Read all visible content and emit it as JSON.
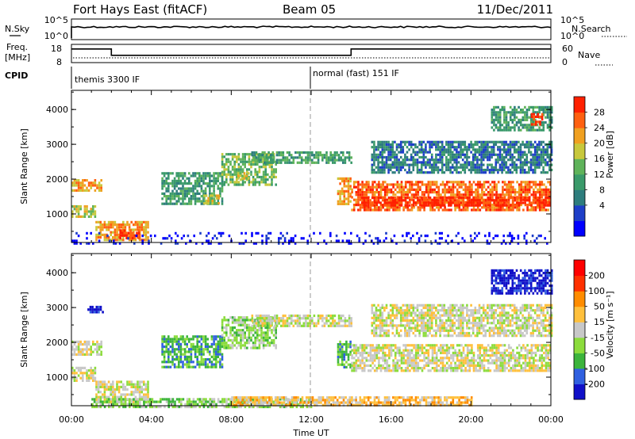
{
  "header": {
    "station": "Fort Hays East (fitACF)",
    "beam": "Beam 05",
    "date": "11/Dec/2011"
  },
  "top_panels": {
    "nsky_label": "N.Sky",
    "nsearch_label": "N.Search",
    "counts_ticks": [
      "10^5",
      "10^0"
    ],
    "freq_label_line1": "Freq.",
    "freq_label_line2": "[MHz]",
    "freq_ticks": [
      "18",
      "8"
    ],
    "nave_label": "Nave",
    "nave_ticks": [
      "60",
      "0"
    ],
    "cpid_label": "CPID",
    "cpid_segments": [
      {
        "label": "themis 3300 IF",
        "start_hour": 0,
        "end_hour": 12
      },
      {
        "label": "normal (fast) 151 IF",
        "start_hour": 12,
        "end_hour": 24
      }
    ],
    "freq_series": [
      {
        "hour": 0,
        "value": 15.5
      },
      {
        "hour": 2,
        "value": 15.5
      },
      {
        "hour": 2,
        "value": 12
      },
      {
        "hour": 14,
        "value": 12
      },
      {
        "hour": 14,
        "value": 15.5
      },
      {
        "hour": 24,
        "value": 15.5
      }
    ]
  },
  "chart_data": [
    {
      "type": "heatmap",
      "parameter": "Power",
      "ylabel": "Slant Range [km]",
      "ylim": [
        180,
        4550
      ],
      "yticks": [
        "1000",
        "2000",
        "3000",
        "4000"
      ],
      "xlim": [
        0,
        24
      ],
      "colorbar": {
        "label": "Power [dB]",
        "ticks": [
          "28",
          "24",
          "20",
          "16",
          "12",
          "8",
          "4"
        ],
        "colors": [
          "#0000ff",
          "#1e3fc8",
          "#2e7d7d",
          "#3a9a6a",
          "#5fb35a",
          "#c8c83c",
          "#f0a020",
          "#ff6010",
          "#ff2000"
        ]
      },
      "bands": [
        {
          "from": 0.0,
          "to": 1.5,
          "y0": 1650,
          "y1": 2000,
          "v": 6
        },
        {
          "from": 0.0,
          "to": 1.2,
          "y0": 900,
          "y1": 1250,
          "v": 5
        },
        {
          "from": 1.2,
          "to": 3.8,
          "y0": 250,
          "y1": 800,
          "v": 6
        },
        {
          "from": 2.4,
          "to": 3.4,
          "y0": 330,
          "y1": 560,
          "v": 8
        },
        {
          "from": 4.5,
          "to": 7.5,
          "y0": 1300,
          "y1": 2200,
          "v": 3
        },
        {
          "from": 6.6,
          "to": 7.4,
          "y0": 1320,
          "y1": 1560,
          "v": 5
        },
        {
          "from": 7.5,
          "to": 10.2,
          "y0": 1850,
          "y1": 2750,
          "v": 4
        },
        {
          "from": 8.3,
          "to": 8.9,
          "y0": 2000,
          "y1": 2200,
          "v": 5
        },
        {
          "from": 9.0,
          "to": 11.9,
          "y0": 2450,
          "y1": 2800,
          "v": 3
        },
        {
          "from": 12.0,
          "to": 14.0,
          "y0": 2450,
          "y1": 2800,
          "v": 3
        },
        {
          "from": 13.3,
          "to": 14.0,
          "y0": 1250,
          "y1": 2050,
          "v": 6
        },
        {
          "from": 14.0,
          "to": 24.0,
          "y0": 1100,
          "y1": 1950,
          "v": 7
        },
        {
          "from": 14.5,
          "to": 24.0,
          "y0": 1250,
          "y1": 1500,
          "v": 8
        },
        {
          "from": 15.0,
          "to": 24.0,
          "y0": 2200,
          "y1": 3100,
          "v": 2
        },
        {
          "from": 21.0,
          "to": 24.0,
          "y0": 3400,
          "y1": 4100,
          "v": 3
        },
        {
          "from": 23.0,
          "to": 23.6,
          "y0": 3550,
          "y1": 3900,
          "v": 8
        },
        {
          "from": 0.0,
          "to": 24.0,
          "y0": 180,
          "y1": 480,
          "v": 0
        }
      ]
    },
    {
      "type": "heatmap",
      "parameter": "Velocity",
      "ylabel": "Slant Range [km]",
      "ylim": [
        180,
        4550
      ],
      "yticks": [
        "1000",
        "2000",
        "3000",
        "4000"
      ],
      "xlim": [
        0,
        24
      ],
      "xticks": [
        "00:00",
        "04:00",
        "08:00",
        "12:00",
        "16:00",
        "20:00",
        "00:00"
      ],
      "xlabel": "Time UT",
      "colorbar": {
        "label": "Velocity [m s⁻¹]",
        "ticks": [
          "200",
          "100",
          "50",
          "15",
          "-15",
          "-50",
          "-100",
          "-200"
        ],
        "colors": [
          "#1010c8",
          "#3060e0",
          "#3cb43c",
          "#8cdc3c",
          "#c8c8c8",
          "#ffc03c",
          "#ff8c00",
          "#ff3000",
          "#ff0000"
        ]
      },
      "bands": [
        {
          "from": 0.0,
          "to": 1.5,
          "y0": 1650,
          "y1": 2050,
          "v": 4
        },
        {
          "from": 0.0,
          "to": 1.2,
          "y0": 900,
          "y1": 1300,
          "v": 4
        },
        {
          "from": 1.2,
          "to": 3.8,
          "y0": 250,
          "y1": 900,
          "v": 4
        },
        {
          "from": 0.8,
          "to": 1.6,
          "y0": 2900,
          "y1": 3050,
          "v": 0
        },
        {
          "from": 4.5,
          "to": 7.5,
          "y0": 1300,
          "y1": 2200,
          "v": 2
        },
        {
          "from": 7.5,
          "to": 10.2,
          "y0": 1850,
          "y1": 2750,
          "v": 3
        },
        {
          "from": 9.0,
          "to": 11.9,
          "y0": 2450,
          "y1": 2800,
          "v": 4
        },
        {
          "from": 12.0,
          "to": 14.0,
          "y0": 2450,
          "y1": 2800,
          "v": 4
        },
        {
          "from": 13.3,
          "to": 14.0,
          "y0": 1250,
          "y1": 2050,
          "v": 2
        },
        {
          "from": 14.0,
          "to": 24.0,
          "y0": 1150,
          "y1": 1950,
          "v": 4
        },
        {
          "from": 15.0,
          "to": 24.0,
          "y0": 2200,
          "y1": 3100,
          "v": 4
        },
        {
          "from": 21.0,
          "to": 24.0,
          "y0": 3400,
          "y1": 4100,
          "v": 0
        },
        {
          "from": 1.0,
          "to": 12.0,
          "y0": 180,
          "y1": 400,
          "v": 3
        },
        {
          "from": 8.0,
          "to": 20.0,
          "y0": 180,
          "y1": 450,
          "v": 5
        }
      ]
    }
  ]
}
